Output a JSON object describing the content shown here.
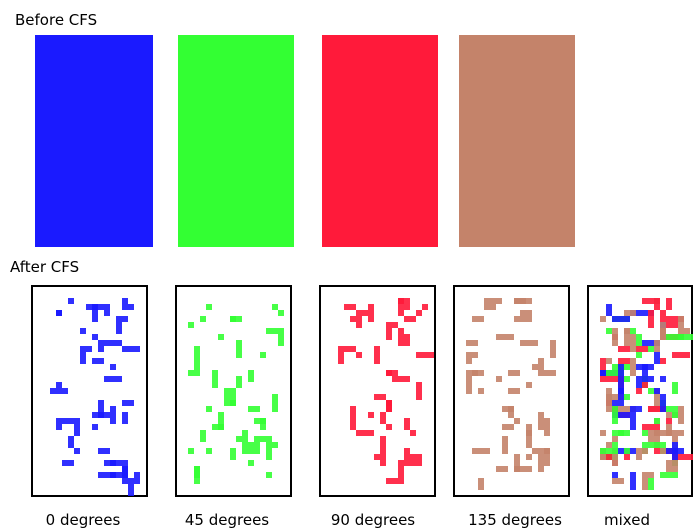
{
  "before": {
    "title": "Before CFS",
    "colors": [
      "#1a1aff",
      "#33ff33",
      "#ff1a3a",
      "#c4836a"
    ]
  },
  "after": {
    "title": "After CFS",
    "labels": [
      "0 degrees",
      "45 degrees",
      "90 degrees",
      "135 degrees",
      "mixed"
    ]
  }
}
